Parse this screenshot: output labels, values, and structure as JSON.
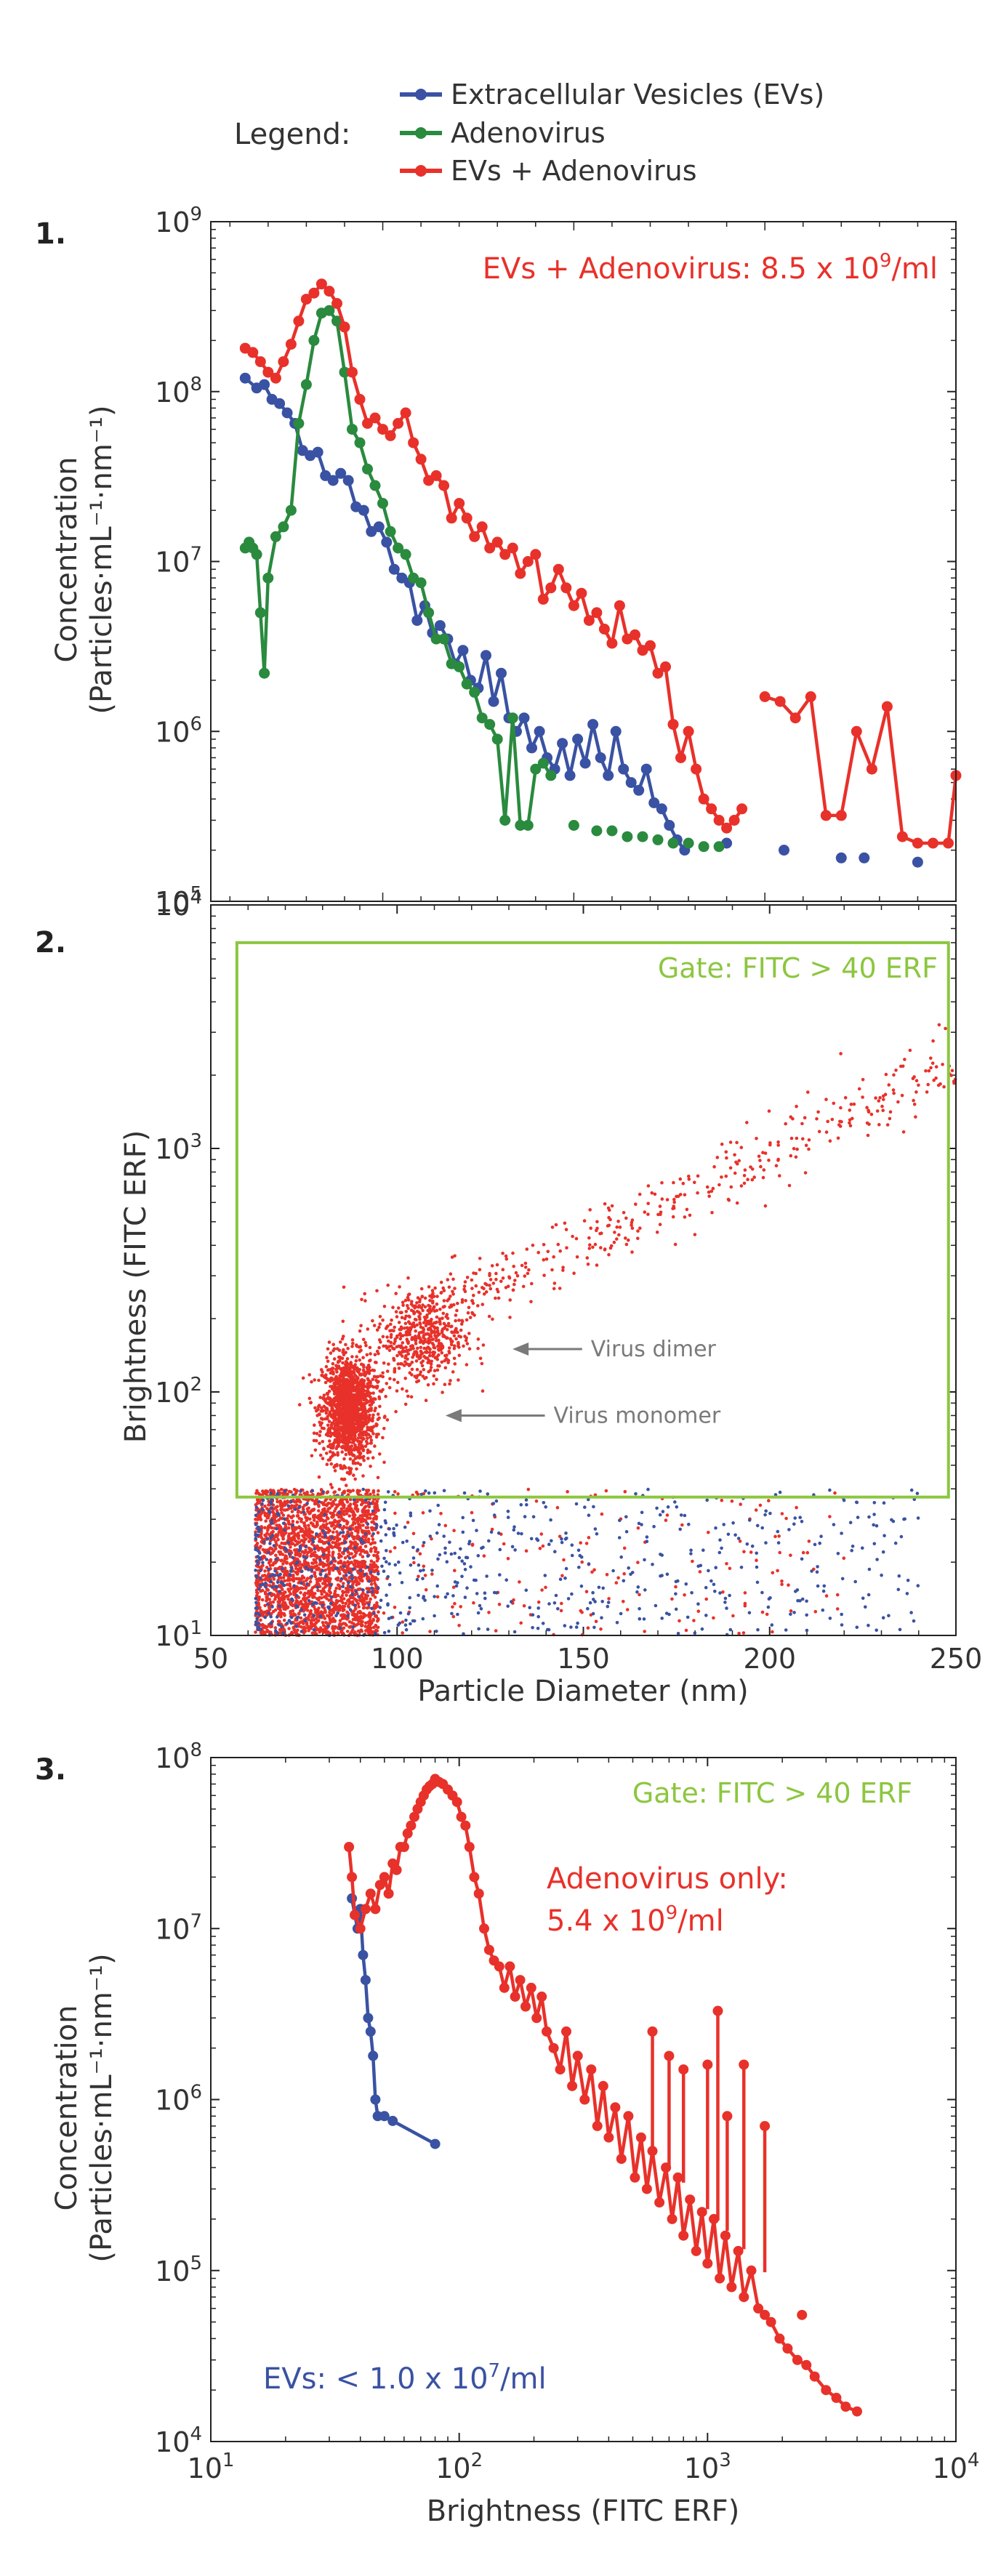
{
  "legend": {
    "title": "Legend:",
    "entries": [
      {
        "label": "Extracellular Vesicles (EVs)",
        "color": "#3a52a3"
      },
      {
        "label": "Adenovirus",
        "color": "#2a8a3e"
      },
      {
        "label": "EVs + Adenovirus",
        "color": "#e8312a"
      }
    ]
  },
  "colors": {
    "ev": "#3a52a3",
    "adeno": "#2a8a3e",
    "mix": "#e8312a",
    "gate": "#8cc63f",
    "annotation": "#7a7a7a"
  },
  "chart_data": [
    {
      "panel_label": "1.",
      "type": "line",
      "xlim": [
        55,
        250
      ],
      "ylog": true,
      "ylim_exp": [
        5,
        9
      ],
      "yticks": [
        {
          "exp": 5,
          "label": "10",
          "sup": "5"
        },
        {
          "exp": 6,
          "label": "10",
          "sup": "6"
        },
        {
          "exp": 7,
          "label": "10",
          "sup": "7"
        },
        {
          "exp": 8,
          "label": "10",
          "sup": "8"
        },
        {
          "exp": 9,
          "label": "10",
          "sup": "9"
        }
      ],
      "ylabel_line1": "Concentration",
      "ylabel_line2": "(Particles·mL⁻¹·nm⁻¹)",
      "annotation": {
        "text": "EVs + Adenovirus: 8.5 x 10",
        "sup": "9",
        "suffix": "/ml"
      },
      "series": [
        {
          "name": "Extracellular Vesicles (EVs)",
          "key": "ev",
          "x": [
            64,
            67,
            69,
            71,
            73,
            75,
            77,
            79,
            81,
            83,
            85,
            87,
            89,
            91,
            93,
            95,
            97,
            99,
            101,
            103,
            105,
            107,
            109,
            111,
            113,
            115,
            117,
            119,
            121,
            123,
            125,
            127,
            129,
            131,
            133,
            135,
            137,
            139,
            141,
            143,
            145,
            147,
            149,
            151,
            153,
            155,
            157,
            159,
            161,
            163,
            165,
            167,
            169,
            171,
            173,
            175,
            177,
            179
          ],
          "y": [
            120000000.0,
            105000000.0,
            110000000.0,
            90000000.0,
            85000000.0,
            75000000.0,
            65000000.0,
            45000000.0,
            42000000.0,
            44000000.0,
            32000000.0,
            30000000.0,
            33000000.0,
            30000000.0,
            21000000.0,
            20000000.0,
            15000000.0,
            16000000.0,
            13000000.0,
            9000000.0,
            8000000.0,
            7500000.0,
            4500000.0,
            5500000.0,
            3800000.0,
            4200000.0,
            3500000.0,
            2500000.0,
            3000000.0,
            2000000.0,
            1800000.0,
            2800000.0,
            1500000.0,
            2200000.0,
            1200000.0,
            1000000.0,
            1200000.0,
            800000.0,
            1000000.0,
            700000.0,
            600000.0,
            850000.0,
            550000.0,
            900000.0,
            650000.0,
            1100000.0,
            700000.0,
            550000.0,
            1000000.0,
            600000.0,
            500000.0,
            450000.0,
            600000.0,
            380000.0,
            350000.0,
            280000.0,
            230000.0,
            200000.0
          ]
        },
        {
          "name": "Adenovirus",
          "key": "adeno",
          "x": [
            64,
            65,
            66,
            67,
            68,
            69,
            70,
            72,
            74,
            76,
            78,
            80,
            82,
            84,
            86,
            88,
            90,
            92,
            94,
            96,
            98,
            100,
            102,
            104,
            106,
            108,
            110,
            112,
            114,
            116,
            118,
            120,
            122,
            124,
            126,
            128,
            130,
            132,
            134,
            136,
            138,
            140,
            142,
            144
          ],
          "y": [
            12000000.0,
            13000000.0,
            12000000.0,
            11000000.0,
            5000000.0,
            2200000.0,
            8000000.0,
            14000000.0,
            16000000.0,
            20000000.0,
            65000000.0,
            110000000.0,
            200000000.0,
            290000000.0,
            300000000.0,
            260000000.0,
            130000000.0,
            60000000.0,
            50000000.0,
            35000000.0,
            28000000.0,
            22000000.0,
            15000000.0,
            12000000.0,
            11000000.0,
            8000000.0,
            7500000.0,
            5000000.0,
            3500000.0,
            3500000.0,
            2500000.0,
            2400000.0,
            1900000.0,
            1700000.0,
            1200000.0,
            1100000.0,
            900000.0,
            300000.0,
            1200000.0,
            280000.0,
            280000.0,
            600000.0,
            650000.0,
            550000.0
          ]
        },
        {
          "name": "EVs + Adenovirus",
          "key": "mix",
          "x": [
            64,
            66,
            68,
            70,
            72,
            74,
            76,
            78,
            80,
            82,
            84,
            86,
            88,
            90,
            92,
            94,
            96,
            98,
            100,
            102,
            104,
            106,
            108,
            110,
            112,
            114,
            116,
            118,
            120,
            122,
            124,
            126,
            128,
            130,
            132,
            134,
            136,
            138,
            140,
            142,
            144,
            146,
            148,
            150,
            152,
            154,
            156,
            158,
            160,
            162,
            164,
            166,
            168,
            170,
            172,
            174,
            176,
            178,
            180,
            182,
            184,
            186,
            188,
            190,
            192,
            194
          ],
          "y": [
            180000000.0,
            170000000.0,
            150000000.0,
            130000000.0,
            120000000.0,
            150000000.0,
            190000000.0,
            260000000.0,
            350000000.0,
            380000000.0,
            430000000.0,
            390000000.0,
            330000000.0,
            240000000.0,
            130000000.0,
            90000000.0,
            65000000.0,
            70000000.0,
            60000000.0,
            55000000.0,
            65000000.0,
            75000000.0,
            50000000.0,
            40000000.0,
            30000000.0,
            32000000.0,
            28000000.0,
            18000000.0,
            22000000.0,
            18000000.0,
            14000000.0,
            16000000.0,
            12000000.0,
            13000000.0,
            11000000.0,
            12000000.0,
            8500000.0,
            10000000.0,
            11000000.0,
            6000000.0,
            7000000.0,
            9000000.0,
            7000000.0,
            5500000.0,
            6500000.0,
            4500000.0,
            5000000.0,
            4000000.0,
            3300000.0,
            5500000.0,
            3500000.0,
            3700000.0,
            3000000.0,
            3200000.0,
            2200000.0,
            2400000.0,
            1100000.0,
            700000.0,
            1000000.0,
            600000.0,
            400000.0,
            350000.0,
            300000.0,
            270000.0,
            300000.0,
            350000.0
          ]
        },
        {
          "name": "EVs + Adenovirus (continued)",
          "key": "mix",
          "x": [
            200,
            204,
            208,
            212,
            216,
            220,
            224,
            228,
            232,
            236,
            240,
            244,
            248,
            250
          ],
          "y": [
            1600000.0,
            1500000.0,
            1200000.0,
            1600000.0,
            320000.0,
            320000.0,
            1000000.0,
            600000.0,
            1400000.0,
            240000.0,
            220000.0,
            220000.0,
            220000.0,
            550000.0
          ]
        }
      ],
      "markers_only": [
        {
          "key": "ev",
          "x": [
            190,
            205,
            220,
            226,
            240
          ],
          "y": [
            220000.0,
            200000.0,
            180000.0,
            180000.0,
            170000.0
          ]
        },
        {
          "key": "adeno",
          "x": [
            150,
            156,
            160,
            164,
            168,
            172,
            176,
            180,
            184,
            188
          ],
          "y": [
            280000.0,
            260000.0,
            260000.0,
            240000.0,
            240000.0,
            230000.0,
            220000.0,
            220000.0,
            210000.0,
            210000.0
          ]
        }
      ]
    },
    {
      "panel_label": "2.",
      "type": "scatter",
      "xlim": [
        50,
        250
      ],
      "xticks": [
        "50",
        "100",
        "150",
        "200",
        "250"
      ],
      "xlabel": "Particle Diameter (nm)",
      "ylog": true,
      "ylim_exp": [
        1,
        4
      ],
      "yticks": [
        {
          "exp": 1,
          "label": "10",
          "sup": "1"
        },
        {
          "exp": 2,
          "label": "10",
          "sup": "2"
        },
        {
          "exp": 3,
          "label": "10",
          "sup": "3"
        },
        {
          "exp": 4,
          "label": "10",
          "sup": "4"
        }
      ],
      "ylabel": "Brightness (FITC ERF)",
      "gate_label": "Gate: FITC > 40 ERF",
      "gate": {
        "x": [
          57,
          248
        ],
        "y": [
          37,
          7000
        ]
      },
      "annotations": [
        {
          "text": "Virus dimer",
          "arrow_to": [
            131,
            150
          ],
          "text_at": [
            152,
            150
          ]
        },
        {
          "text": "Virus monomer",
          "arrow_to": [
            113,
            80
          ],
          "text_at": [
            142,
            80
          ]
        }
      ],
      "clusters": [
        {
          "key": "mix",
          "name": "adenovirus monomers",
          "count": 1500,
          "x_center": 87,
          "x_sd": 3.5,
          "log10y_center": 1.93,
          "log10y_sd": 0.11
        },
        {
          "key": "mix",
          "name": "adenovirus dimers",
          "count": 500,
          "x_center": 106,
          "x_sd": 6,
          "log10y_center": 2.22,
          "log10y_sd": 0.1
        },
        {
          "key": "mix",
          "name": "aggregates trend",
          "count": 420,
          "x_range": [
            108,
            250
          ],
          "log10y_at_xmin": 2.3,
          "log10y_at_xmax": 3.35,
          "log10y_sd": 0.07
        },
        {
          "key": "mix",
          "name": "below-gate EV-like mix",
          "count": 2400,
          "x_range": [
            62,
            95
          ],
          "log10y_range": [
            1.0,
            1.6
          ]
        },
        {
          "key": "mix",
          "name": "sparse below gate",
          "count": 180,
          "x_range": [
            95,
            220
          ],
          "log10y_range": [
            1.0,
            1.6
          ]
        },
        {
          "key": "ev",
          "name": "EV scatter",
          "count": 700,
          "x_range": [
            62,
            240
          ],
          "log10y_range": [
            1.0,
            1.6
          ]
        }
      ]
    },
    {
      "panel_label": "3.",
      "type": "line",
      "xlog": true,
      "xlim_exp": [
        1,
        4
      ],
      "xticks": [
        {
          "exp": 1,
          "label": "10",
          "sup": "1"
        },
        {
          "exp": 2,
          "label": "10",
          "sup": "2"
        },
        {
          "exp": 3,
          "label": "10",
          "sup": "3"
        },
        {
          "exp": 4,
          "label": "10",
          "sup": "4"
        }
      ],
      "xlabel": "Brightness (FITC ERF)",
      "ylog": true,
      "ylim_exp": [
        4,
        8
      ],
      "yticks": [
        {
          "exp": 4,
          "label": "10",
          "sup": "4"
        },
        {
          "exp": 5,
          "label": "10",
          "sup": "5"
        },
        {
          "exp": 6,
          "label": "10",
          "sup": "6"
        },
        {
          "exp": 7,
          "label": "10",
          "sup": "7"
        },
        {
          "exp": 8,
          "label": "10",
          "sup": "8"
        }
      ],
      "ylabel_line1": "Concentration",
      "ylabel_line2": "(Particles·mL⁻¹·nm⁻¹)",
      "gate_label": "Gate: FITC > 40 ERF",
      "annotation_adeno_line1": "Adenovirus only:",
      "annotation_adeno_line2": {
        "text": "5.4 x 10",
        "sup": "9",
        "suffix": "/ml"
      },
      "annotation_ev": {
        "text": "EVs:  < 1.0 x 10",
        "sup": "7",
        "suffix": "/ml"
      },
      "series": [
        {
          "name": "Extracellular Vesicles (EVs)",
          "key": "ev",
          "x": [
            37,
            38,
            39,
            40,
            41,
            42,
            43,
            44,
            45,
            46,
            47,
            50,
            54,
            80
          ],
          "y": [
            15000000.0,
            12000000.0,
            10000000.0,
            13000000.0,
            7000000.0,
            5000000.0,
            3000000.0,
            2500000.0,
            1800000.0,
            1000000.0,
            800000.0,
            800000.0,
            750000.0,
            550000.0
          ]
        },
        {
          "name": "Adenovirus",
          "key": "mix",
          "x": [
            36,
            37,
            38,
            40,
            42,
            44,
            46,
            48,
            50,
            52,
            54,
            56,
            58,
            60,
            62,
            64,
            66,
            68,
            70,
            72,
            74,
            76,
            78,
            80,
            83,
            86,
            90,
            94,
            98,
            102,
            106,
            110,
            115,
            120,
            126,
            132,
            138,
            145,
            152,
            160,
            168,
            176,
            185,
            195,
            205,
            215,
            225,
            240,
            255,
            270,
            285,
            300,
            320,
            340,
            360,
            380,
            400,
            425,
            450,
            480,
            510,
            540,
            570,
            600,
            640,
            680,
            720,
            760,
            800,
            850,
            900,
            950,
            1000,
            1060,
            1120,
            1180,
            1250,
            1330,
            1400,
            1500,
            1600,
            1700,
            1800,
            1950,
            2100,
            2300,
            2500,
            2700,
            3000,
            3300,
            3600,
            4000
          ],
          "y": [
            30000000.0,
            20000000.0,
            12000000.0,
            10000000.0,
            13000000.0,
            16000000.0,
            13000000.0,
            18000000.0,
            20000000.0,
            16000000.0,
            24000000.0,
            22000000.0,
            30000000.0,
            30000000.0,
            36000000.0,
            40000000.0,
            45000000.0,
            50000000.0,
            55000000.0,
            60000000.0,
            65000000.0,
            68000000.0,
            70000000.0,
            75000000.0,
            72000000.0,
            70000000.0,
            65000000.0,
            60000000.0,
            55000000.0,
            45000000.0,
            40000000.0,
            30000000.0,
            20000000.0,
            16000000.0,
            10000000.0,
            7500000.0,
            6500000.0,
            6000000.0,
            4500000.0,
            6000000.0,
            4000000.0,
            5000000.0,
            3500000.0,
            4500000.0,
            3000000.0,
            4000000.0,
            2500000.0,
            2000000.0,
            1500000.0,
            2500000.0,
            1200000.0,
            1800000.0,
            1000000.0,
            1500000.0,
            700000.0,
            1200000.0,
            600000.0,
            900000.0,
            450000.0,
            800000.0,
            350000.0,
            600000.0,
            300000.0,
            500000.0,
            250000.0,
            400000.0,
            200000.0,
            350000.0,
            160000.0,
            260000.0,
            130000.0,
            220000.0,
            110000.0,
            200000.0,
            90000.0,
            160000.0,
            80000.0,
            130000.0,
            70000.0,
            100000.0,
            60000.0,
            55000.0,
            50000.0,
            40000.0,
            35000.0,
            30000.0,
            28000.0,
            24000.0,
            20000.0,
            18000.0,
            16000.0,
            15000.0
          ]
        }
      ],
      "spikes": [
        {
          "x": 600,
          "y_top": 2500000.0
        },
        {
          "x": 700,
          "y_top": 1800000.0
        },
        {
          "x": 800,
          "y_top": 1500000.0
        },
        {
          "x": 1000,
          "y_top": 1600000.0
        },
        {
          "x": 1100,
          "y_top": 3300000.0
        },
        {
          "x": 1200,
          "y_top": 800000.0
        },
        {
          "x": 1400,
          "y_top": 1600000.0
        },
        {
          "x": 1700,
          "y_top": 700000.0
        },
        {
          "x": 2400,
          "y_top": 55000.0
        }
      ]
    }
  ]
}
